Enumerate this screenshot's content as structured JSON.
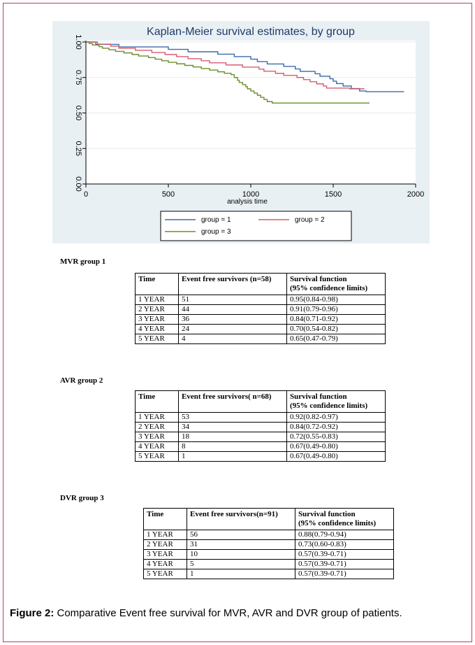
{
  "chart_data": {
    "type": "line",
    "title": "Kaplan-Meier survival estimates, by group",
    "xlabel": "analysis time",
    "ylabel": "",
    "xlim": [
      0,
      2000
    ],
    "ylim": [
      0,
      1
    ],
    "xticks": [
      "0",
      "500",
      "1000",
      "1500",
      "2000"
    ],
    "yticks": [
      "0.00",
      "0.25",
      "0.50",
      "0.75",
      "1.00"
    ],
    "grid": true,
    "legend_position": "bottom",
    "step": true,
    "series": [
      {
        "name": "group = 1",
        "color": "#3b6aa8",
        "points": [
          [
            0,
            1
          ],
          [
            30,
            1
          ],
          [
            60,
            0.983
          ],
          [
            200,
            0.965
          ],
          [
            500,
            0.948
          ],
          [
            620,
            0.931
          ],
          [
            800,
            0.914
          ],
          [
            900,
            0.897
          ],
          [
            1000,
            0.879
          ],
          [
            1040,
            0.862
          ],
          [
            1100,
            0.845
          ],
          [
            1200,
            0.828
          ],
          [
            1270,
            0.81
          ],
          [
            1300,
            0.793
          ],
          [
            1390,
            0.776
          ],
          [
            1420,
            0.759
          ],
          [
            1480,
            0.741
          ],
          [
            1500,
            0.724
          ],
          [
            1520,
            0.707
          ],
          [
            1560,
            0.69
          ],
          [
            1610,
            0.672
          ],
          [
            1660,
            0.655
          ],
          [
            1700,
            0.65
          ],
          [
            1930,
            0.65
          ]
        ]
      },
      {
        "name": "group = 2",
        "color": "#d65c70",
        "points": [
          [
            0,
            1
          ],
          [
            70,
            0.985
          ],
          [
            150,
            0.97
          ],
          [
            200,
            0.956
          ],
          [
            300,
            0.941
          ],
          [
            400,
            0.926
          ],
          [
            480,
            0.912
          ],
          [
            550,
            0.897
          ],
          [
            620,
            0.882
          ],
          [
            700,
            0.868
          ],
          [
            750,
            0.853
          ],
          [
            850,
            0.838
          ],
          [
            950,
            0.823
          ],
          [
            1050,
            0.809
          ],
          [
            1080,
            0.794
          ],
          [
            1150,
            0.779
          ],
          [
            1200,
            0.765
          ],
          [
            1280,
            0.75
          ],
          [
            1320,
            0.735
          ],
          [
            1360,
            0.72
          ],
          [
            1400,
            0.705
          ],
          [
            1440,
            0.69
          ],
          [
            1460,
            0.675
          ],
          [
            1600,
            0.67
          ],
          [
            1690,
            0.67
          ]
        ]
      },
      {
        "name": "group = 3",
        "color": "#6b8e2e",
        "points": [
          [
            0,
            1
          ],
          [
            20,
            0.989
          ],
          [
            40,
            0.978
          ],
          [
            80,
            0.967
          ],
          [
            100,
            0.956
          ],
          [
            140,
            0.945
          ],
          [
            180,
            0.934
          ],
          [
            230,
            0.923
          ],
          [
            280,
            0.912
          ],
          [
            320,
            0.901
          ],
          [
            380,
            0.89
          ],
          [
            420,
            0.879
          ],
          [
            460,
            0.868
          ],
          [
            500,
            0.857
          ],
          [
            550,
            0.846
          ],
          [
            600,
            0.835
          ],
          [
            650,
            0.824
          ],
          [
            700,
            0.813
          ],
          [
            750,
            0.802
          ],
          [
            800,
            0.79
          ],
          [
            840,
            0.78
          ],
          [
            880,
            0.77
          ],
          [
            900,
            0.75
          ],
          [
            920,
            0.73
          ],
          [
            930,
            0.715
          ],
          [
            950,
            0.7
          ],
          [
            970,
            0.685
          ],
          [
            980,
            0.67
          ],
          [
            1000,
            0.655
          ],
          [
            1020,
            0.64
          ],
          [
            1040,
            0.625
          ],
          [
            1060,
            0.61
          ],
          [
            1080,
            0.595
          ],
          [
            1100,
            0.58
          ],
          [
            1130,
            0.57
          ],
          [
            1720,
            0.57
          ]
        ]
      }
    ]
  },
  "tables": [
    {
      "title": "MVR group 1",
      "headers": {
        "time": "Time",
        "survivors": "Event free survivors (n=58)",
        "function": "Survival function",
        "function_sub": "(95% confidence limits)"
      },
      "rows": [
        {
          "time": "1 YEAR",
          "survivors": "51",
          "function": "0.95(0.84-0.98)"
        },
        {
          "time": "2 YEAR",
          "survivors": "44",
          "function": "0.91(0.79-0.96)"
        },
        {
          "time": "3 YEAR",
          "survivors": "36",
          "function": "0.84(0.71-0.92)"
        },
        {
          "time": "4 YEAR",
          "survivors": "24",
          "function": "0.70(0.54-0.82)"
        },
        {
          "time": "5 YEAR",
          "survivors": "4",
          "function": "0.65(0.47-0.79)"
        }
      ]
    },
    {
      "title": "AVR group 2",
      "headers": {
        "time": "Time",
        "survivors": "Event free survivors( n=68)",
        "function": "Survival function",
        "function_sub": "(95% confidence limits)"
      },
      "rows": [
        {
          "time": "1 YEAR",
          "survivors": "53",
          "function": "0.92(0.82-0.97)"
        },
        {
          "time": "2 YEAR",
          "survivors": "34",
          "function": "0.84(0.72-0.92)"
        },
        {
          "time": "3 YEAR",
          "survivors": "18",
          "function": "0.72(0.55-0.83)"
        },
        {
          "time": "4 YEAR",
          "survivors": "8",
          "function": "0.67(0.49-0.80)"
        },
        {
          "time": "5 YEAR",
          "survivors": "1",
          "function": "0.67(0.49-0.80)"
        }
      ]
    },
    {
      "title": "DVR group 3",
      "headers": {
        "time": "Time",
        "survivors": "Event free survivors(n=91)",
        "function": "Survival function",
        "function_sub": "(95% confidence limits)"
      },
      "rows": [
        {
          "time": "1 YEAR",
          "survivors": "56",
          "function": "0.88(0.79-0.94)"
        },
        {
          "time": "2 YEAR",
          "survivors": "31",
          "function": "0.73(0.60-0.83)"
        },
        {
          "time": "3 YEAR",
          "survivors": "10",
          "function": "0.57(0.39-0.71)"
        },
        {
          "time": "4 YEAR",
          "survivors": "5",
          "function": "0.57(0.39-0.71)"
        },
        {
          "time": "5 YEAR",
          "survivors": "1",
          "function": "0.57(0.39-0.71)"
        }
      ]
    }
  ],
  "caption": {
    "label": "Figure 2:",
    "text": " Comparative Event free survival for MVR, AVR and DVR group of patients."
  }
}
